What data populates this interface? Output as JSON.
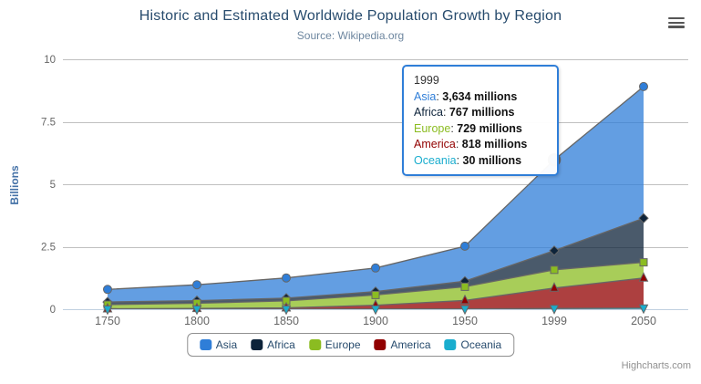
{
  "chart_data": {
    "type": "area",
    "stacking": "normal",
    "title": "Historic and Estimated Worldwide Population Growth by Region",
    "subtitle": "Source: Wikipedia.org",
    "categories": [
      "1750",
      "1800",
      "1850",
      "1900",
      "1950",
      "1999",
      "2050"
    ],
    "xlabel": "",
    "ylabel": "Billions",
    "ylim": [
      0,
      10
    ],
    "yticks": [
      0,
      2.5,
      5,
      7.5,
      10
    ],
    "ytick_labels": [
      "0",
      "2.5",
      "5",
      "7.5",
      "10"
    ],
    "grid": true,
    "legend_position": "bottom",
    "values_unit": "millions",
    "series": [
      {
        "name": "Asia",
        "color": "#2f7ed8",
        "marker": "circle",
        "values": [
          502,
          635,
          809,
          947,
          1402,
          3634,
          5268
        ]
      },
      {
        "name": "Africa",
        "color": "#0d233a",
        "marker": "diamond",
        "values": [
          106,
          107,
          111,
          133,
          221,
          767,
          1766
        ]
      },
      {
        "name": "Europe",
        "color": "#8bbc21",
        "marker": "square",
        "values": [
          163,
          203,
          276,
          408,
          547,
          729,
          628
        ]
      },
      {
        "name": "America",
        "color": "#910000",
        "marker": "triangle",
        "values": [
          18,
          31,
          54,
          156,
          339,
          818,
          1201
        ]
      },
      {
        "name": "Oceania",
        "color": "#1aadce",
        "marker": "triangle-down",
        "values": [
          2,
          2,
          2,
          6,
          13,
          30,
          46
        ]
      }
    ]
  },
  "tooltip": {
    "visible": true,
    "header": "1999",
    "border_color": "#2f7ed8",
    "hover_point": {
      "series": "Asia",
      "category": "1999"
    },
    "rows": [
      {
        "name": "Asia",
        "value": "3,634 millions",
        "color": "#2f7ed8"
      },
      {
        "name": "Africa",
        "value": "767 millions",
        "color": "#0d233a"
      },
      {
        "name": "Europe",
        "value": "729 millions",
        "color": "#8bbc21"
      },
      {
        "name": "America",
        "value": "818 millions",
        "color": "#910000"
      },
      {
        "name": "Oceania",
        "value": "30 millions",
        "color": "#1aadce"
      }
    ]
  },
  "credits": {
    "label": "Highcharts.com"
  },
  "icons": {
    "export_menu": "hamburger-menu-icon"
  },
  "colors": {
    "grid": "#c0c0c0",
    "axis_line": "#c0d0e0",
    "series_line": "#666666",
    "marker_stroke": "#666666",
    "title": "#274b6d",
    "subtitle": "#6d869f",
    "axis_label": "#666666",
    "y_axis_title": "#4572a7",
    "legend_border": "#909090",
    "credits": "#909090",
    "area_fill_opacity": 0.75
  }
}
